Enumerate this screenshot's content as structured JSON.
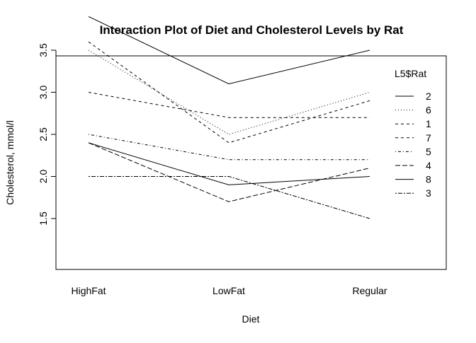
{
  "chart_data": {
    "type": "line",
    "title": "Interaction Plot of Diet and Cholesterol Levels by Rat",
    "xlabel": "Diet",
    "ylabel": "Cholesterol, mmol/l",
    "categories": [
      "HighFat",
      "LowFat",
      "Regular"
    ],
    "yticks": [
      1.5,
      2.0,
      2.5,
      3.0,
      3.5
    ],
    "ytick_labels": [
      "1.5",
      "2.0",
      "2.5",
      "3.0",
      "3.5"
    ],
    "ylim": [
      1.5,
      3.9
    ],
    "grid": false,
    "legend": {
      "title": "L5$Rat",
      "position": "top-right"
    },
    "series": [
      {
        "name": "2",
        "values": [
          3.9,
          3.1,
          3.5
        ],
        "dash": "solid"
      },
      {
        "name": "6",
        "values": [
          3.5,
          2.5,
          3.0
        ],
        "dash": "dotted"
      },
      {
        "name": "1",
        "values": [
          3.6,
          2.4,
          2.9
        ],
        "dash": "dashed"
      },
      {
        "name": "7",
        "values": [
          3.0,
          2.7,
          2.7
        ],
        "dash": "dashed"
      },
      {
        "name": "5",
        "values": [
          2.5,
          2.2,
          2.2
        ],
        "dash": "dotdash"
      },
      {
        "name": "4",
        "values": [
          2.4,
          1.7,
          2.1
        ],
        "dash": "longdash"
      },
      {
        "name": "8",
        "values": [
          2.4,
          1.9,
          2.0
        ],
        "dash": "solid"
      },
      {
        "name": "3",
        "values": [
          2.0,
          2.0,
          1.5
        ],
        "dash": "twodash"
      }
    ]
  }
}
